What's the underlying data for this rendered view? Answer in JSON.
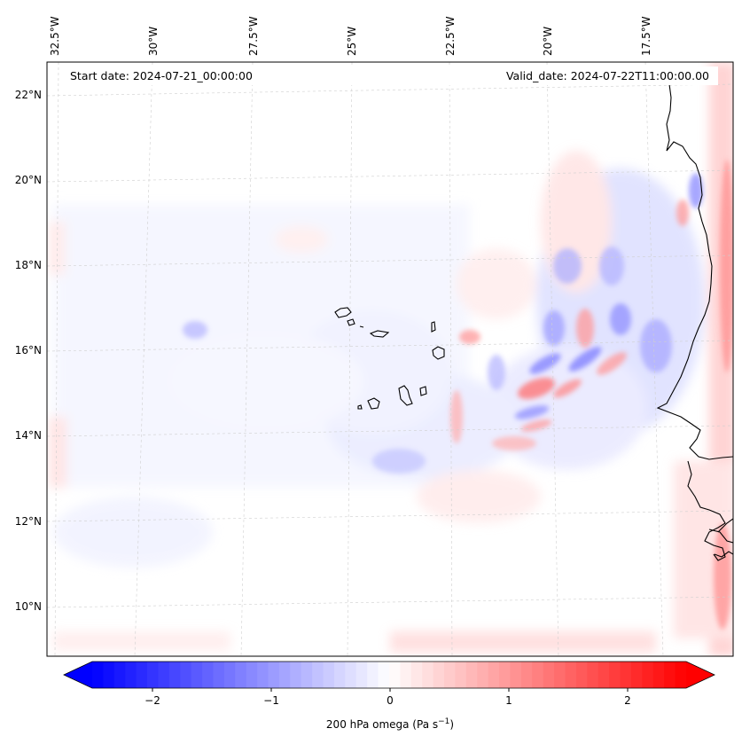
{
  "map": {
    "start_date": "Start date: 2024-07-21_00:00:00",
    "valid_date": "Valid_date: 2024-07-22T11:00:00.00",
    "lon_labels": [
      "32.5°W",
      "30°W",
      "27.5°W",
      "25°W",
      "22.5°W",
      "20°W",
      "17.5°W"
    ],
    "lat_labels": [
      "22°N",
      "20°N",
      "18°N",
      "16°N",
      "14°N",
      "12°N",
      "10°N"
    ],
    "colorbar": {
      "ticks": [
        "−2",
        "−1",
        "0",
        "1",
        "2"
      ],
      "label_main": "200 hPa omega (Pa s",
      "label_sup": "−1",
      "label_close": ")",
      "min": -2.7,
      "max": 2.7,
      "levels": 54
    },
    "colors": {
      "negative": "#0000ff",
      "positive": "#ff0000",
      "neutral": "#ffffff",
      "coastline": "#000000",
      "grid": "#c8c8c8"
    }
  }
}
